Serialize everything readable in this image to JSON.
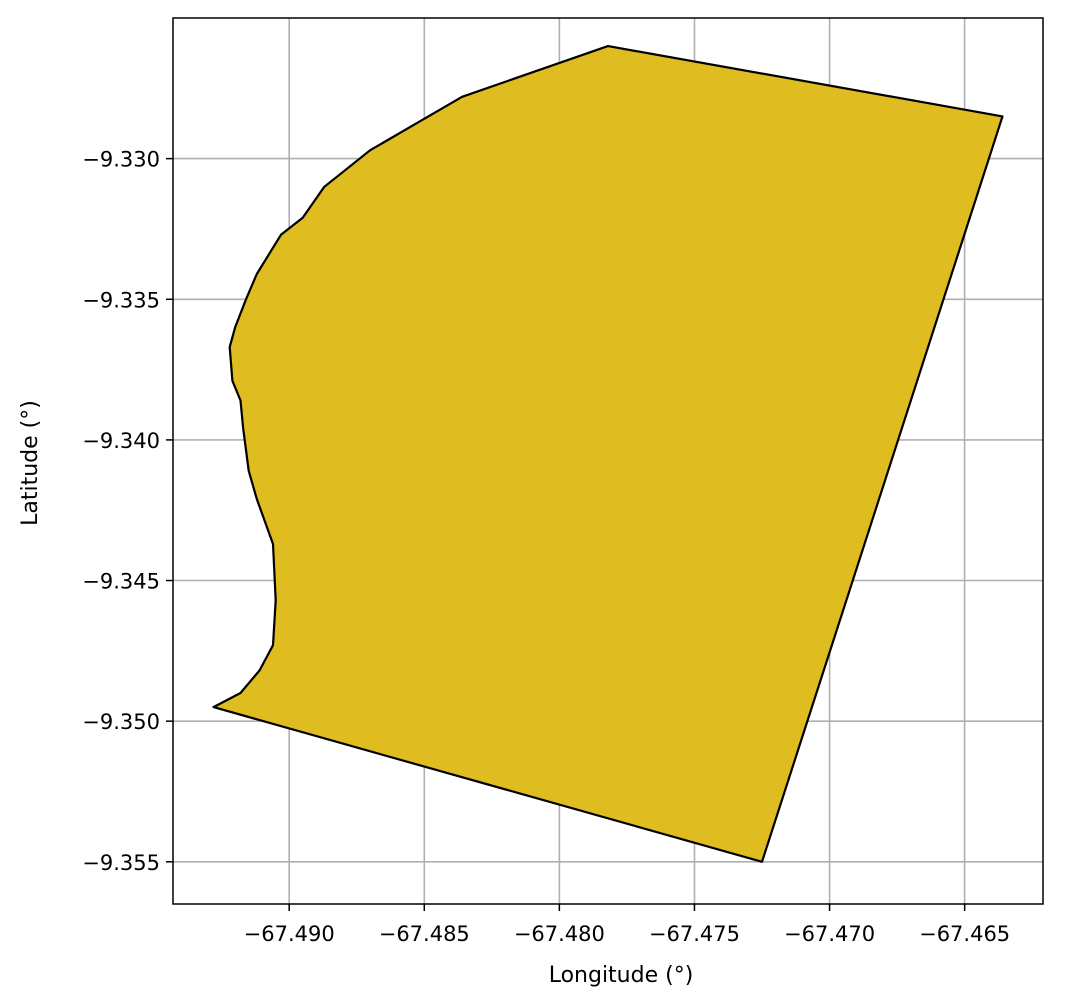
{
  "chart_data": {
    "type": "area",
    "title": "",
    "xlabel": "Longitude (°)",
    "ylabel": "Latitude (°)",
    "xlim": [
      -67.4943,
      -67.4621
    ],
    "ylim": [
      -9.3565,
      -9.325
    ],
    "grid": true,
    "x_ticks": [
      -67.49,
      -67.485,
      -67.48,
      -67.475,
      -67.47,
      -67.465
    ],
    "x_tick_labels": [
      "−67.490",
      "−67.485",
      "−67.480",
      "−67.475",
      "−67.470",
      "−67.465"
    ],
    "y_ticks": [
      -9.33,
      -9.335,
      -9.34,
      -9.345,
      -9.35,
      -9.355
    ],
    "y_tick_labels": [
      "−9.330",
      "−9.335",
      "−9.340",
      "−9.345",
      "−9.350",
      "−9.355"
    ],
    "polygon": {
      "fill": "#DFBC1F",
      "stroke": "#000000",
      "coordinates": [
        [
          -67.4782,
          -9.326
        ],
        [
          -67.4636,
          -9.3285
        ],
        [
          -67.4725,
          -9.355
        ],
        [
          -67.4928,
          -9.3495
        ],
        [
          -67.4918,
          -9.349
        ],
        [
          -67.4911,
          -9.3482
        ],
        [
          -67.4906,
          -9.3473
        ],
        [
          -67.4905,
          -9.3457
        ],
        [
          -67.4906,
          -9.3437
        ],
        [
          -67.4912,
          -9.3421
        ],
        [
          -67.4915,
          -9.3411
        ],
        [
          -67.4917,
          -9.3396
        ],
        [
          -67.4918,
          -9.3386
        ],
        [
          -67.4921,
          -9.3379
        ],
        [
          -67.4922,
          -9.3367
        ],
        [
          -67.492,
          -9.336
        ],
        [
          -67.4916,
          -9.335
        ],
        [
          -67.4912,
          -9.3341
        ],
        [
          -67.4903,
          -9.3327
        ],
        [
          -67.4895,
          -9.3321
        ],
        [
          -67.4887,
          -9.331
        ],
        [
          -67.487,
          -9.3297
        ],
        [
          -67.4836,
          -9.3278
        ],
        [
          -67.4782,
          -9.326
        ]
      ]
    }
  }
}
